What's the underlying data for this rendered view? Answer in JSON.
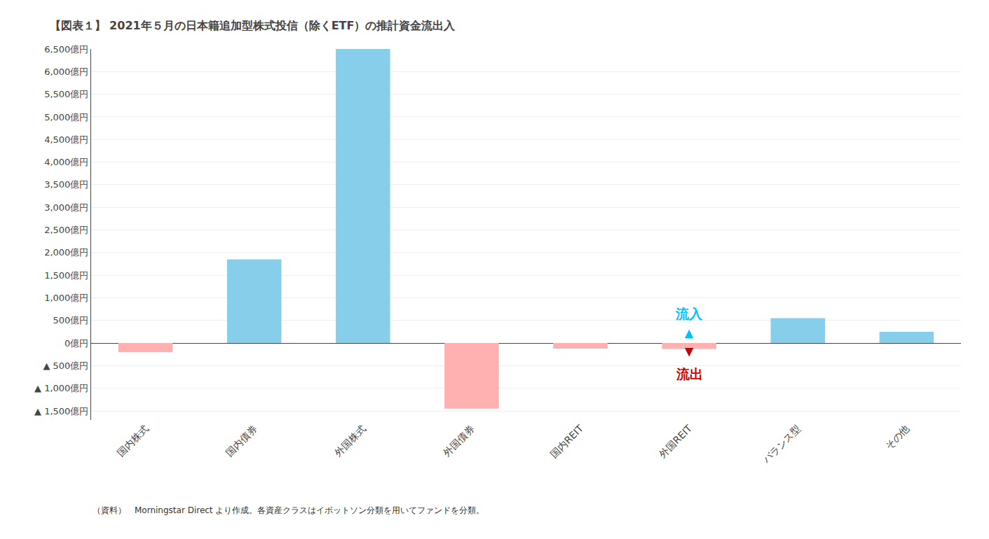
{
  "chart_data": {
    "type": "bar",
    "title": "【図表１】 2021年５月の日本籍追加型株式投信（除くETF）の推計資金流出入",
    "caption": "（資料）　Morningstar Direct より作成。各資産クラスはイボットソン分類を用いてファンドを分類。",
    "categories": [
      "国内株式",
      "国内債券",
      "外国株式",
      "外国債券",
      "国内REIT",
      "外国REIT",
      "バランス型",
      "その他"
    ],
    "values": [
      -200,
      1850,
      6500,
      -1450,
      -120,
      -130,
      550,
      250
    ],
    "colors": [
      "#FFB0B0",
      "#87CEEB",
      "#87CEEB",
      "#FFB0B0",
      "#FFB0B0",
      "#FFB0B0",
      "#87CEEB",
      "#87CEEB"
    ],
    "ylim": [
      -1700,
      6500
    ],
    "yticks": [
      {
        "value": -1500,
        "label": "▲ 1,500億円"
      },
      {
        "value": -1000,
        "label": "▲ 1,000億円"
      },
      {
        "value": -500,
        "label": "▲ 500億円"
      },
      {
        "value": 0,
        "label": "0億円"
      },
      {
        "value": 500,
        "label": "500億円"
      },
      {
        "value": 1000,
        "label": "1,000億円"
      },
      {
        "value": 1500,
        "label": "1,500億円"
      },
      {
        "value": 2000,
        "label": "2,000億円"
      },
      {
        "value": 2500,
        "label": "2,500億円"
      },
      {
        "value": 3000,
        "label": "3,000億円"
      },
      {
        "value": 3500,
        "label": "3,500億円"
      },
      {
        "value": 4000,
        "label": "4,000億円"
      },
      {
        "value": 4500,
        "label": "4,500億円"
      },
      {
        "value": 5000,
        "label": "5,000億円"
      },
      {
        "value": 5500,
        "label": "5,500億円"
      },
      {
        "value": 6000,
        "label": "6,000億円"
      },
      {
        "value": 6500,
        "label": "6,500億円"
      }
    ],
    "grid": true,
    "annotations": [
      {
        "text": "流入",
        "color": "#00BFFF",
        "x": "外国REIT",
        "y": 450,
        "arrow": [
          80,
          300
        ]
      },
      {
        "text": "流出",
        "color": "#CC0000",
        "x": "外国REIT",
        "y": -480,
        "arrow": [
          -100,
          -300
        ]
      }
    ]
  }
}
